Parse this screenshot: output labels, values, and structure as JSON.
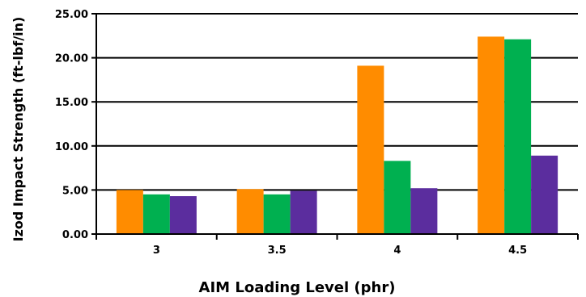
{
  "chart_data": {
    "type": "bar",
    "title": "",
    "xlabel": "AIM Loading Level (phr)",
    "ylabel": "Izod Impact Strength (ft-lbf/in)",
    "categories": [
      "3",
      "3.5",
      "4",
      "4.5"
    ],
    "ylim": [
      0,
      25
    ],
    "yticks": [
      "0.00",
      "5.00",
      "10.00",
      "15.00",
      "20.00",
      "25.00"
    ],
    "grid": true,
    "legend": "none",
    "series": [
      {
        "color": "#FF8C00",
        "values": [
          5.0,
          5.1,
          19.1,
          22.4
        ]
      },
      {
        "color": "#00B050",
        "values": [
          4.5,
          4.5,
          8.3,
          22.1
        ]
      },
      {
        "color": "#5B2D9E",
        "values": [
          4.3,
          4.9,
          5.2,
          8.9
        ]
      }
    ]
  }
}
